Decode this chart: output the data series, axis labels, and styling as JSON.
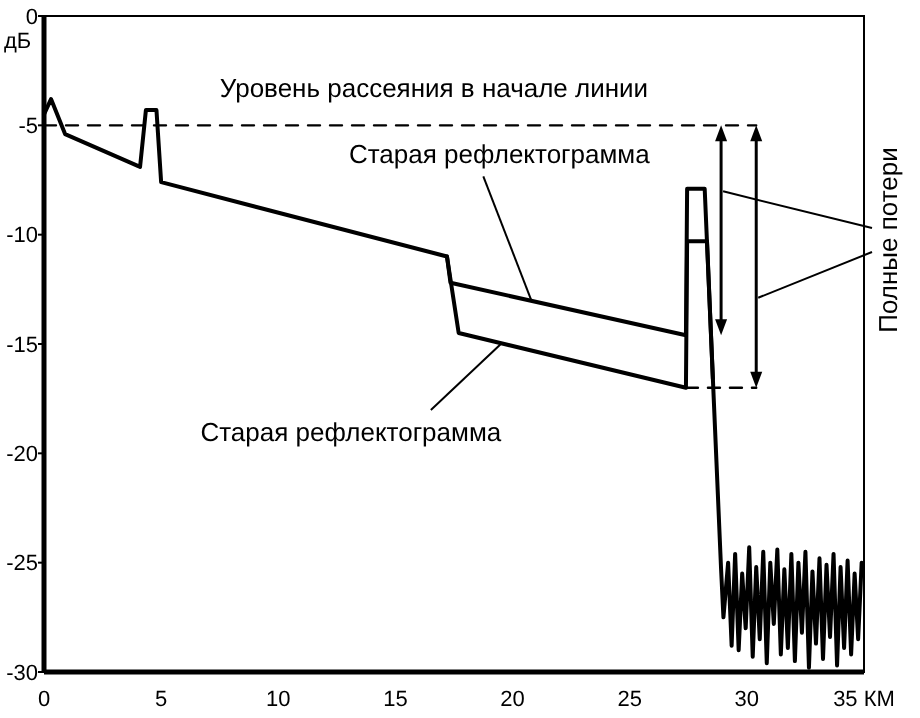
{
  "chart_data": {
    "type": "line",
    "ylabel": "дБ",
    "xlim": [
      0,
      35
    ],
    "xticks": [
      0,
      5,
      10,
      15,
      20,
      25,
      30,
      {
        "value": 35,
        "label": "35 КМ"
      }
    ],
    "ylim": [
      -30,
      0
    ],
    "yticks": [
      0,
      -5,
      -10,
      -15,
      -20,
      -25,
      -30
    ],
    "grid": false,
    "series": [
      {
        "color": "#000000",
        "line_style": "solid",
        "x": [
          0,
          0.3,
          0.9,
          4.1,
          4.35,
          4.8,
          5.0,
          17.2,
          17.35,
          27.4,
          27.45,
          28.2,
          28.9,
          29.0,
          29.2,
          29.35,
          29.5,
          29.65,
          29.8,
          29.95,
          30.1,
          30.25,
          30.4,
          30.55,
          30.7,
          30.85,
          31.0,
          31.15,
          31.3,
          31.45,
          31.6,
          31.75,
          31.9,
          32.05,
          32.2,
          32.35,
          32.5,
          32.65,
          32.8,
          32.95,
          33.1,
          33.25,
          33.4,
          33.55,
          33.7,
          33.85,
          34.0,
          34.15,
          34.3,
          34.45,
          34.6,
          34.75,
          34.9
        ],
        "values": [
          -4.5,
          -3.8,
          -5.4,
          -6.9,
          -4.3,
          -4.3,
          -7.6,
          -11.0,
          -12.2,
          -14.6,
          -7.9,
          -7.9,
          -25.3,
          -27.5,
          -25.0,
          -28.8,
          -24.6,
          -29.0,
          -25.5,
          -28.0,
          -24.3,
          -29.3,
          -25.2,
          -28.5,
          -24.5,
          -29.6,
          -25.0,
          -27.8,
          -24.4,
          -29.2,
          -25.3,
          -28.9,
          -24.6,
          -29.5,
          -25.0,
          -28.2,
          -24.5,
          -29.8,
          -25.4,
          -28.7,
          -24.8,
          -29.4,
          -25.1,
          -28.4,
          -24.6,
          -29.7,
          -25.2,
          -28.9,
          -24.9,
          -29.2,
          -25.5,
          -28.5,
          -25.0
        ]
      },
      {
        "color": "#000000",
        "line_style": "solid",
        "x": [
          17.2,
          17.7,
          27.4,
          27.45,
          28.3,
          28.55
        ],
        "values": [
          -11.0,
          -14.5,
          -17.0,
          -10.3,
          -10.3,
          -16.6
        ]
      },
      {
        "color": "#000000",
        "line_style": "dashed",
        "x": [
          0,
          30.4
        ],
        "values": [
          -5,
          -5
        ]
      },
      {
        "color": "#000000",
        "line_style": "dashed",
        "x": [
          27.4,
          30.4
        ],
        "values": [
          -17,
          -17
        ]
      }
    ],
    "annotations": [
      "Уровень рассеяния в начале линии",
      {
        "text": "Старая рефлектограмма",
        "x": 20.8,
        "y": -13.0
      },
      {
        "text": "Старая рефлектограмма",
        "x": 19.5,
        "y": -15.0
      },
      "Полные потери"
    ]
  }
}
